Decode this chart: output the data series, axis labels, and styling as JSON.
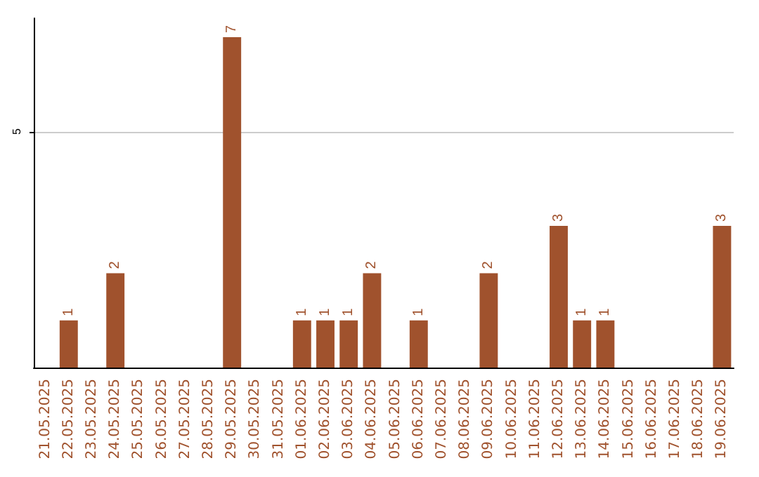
{
  "chart_data": {
    "type": "bar",
    "categories": [
      "21.05.2025",
      "22.05.2025",
      "23.05.2025",
      "24.05.2025",
      "25.05.2025",
      "26.05.2025",
      "27.05.2025",
      "28.05.2025",
      "29.05.2025",
      "30.05.2025",
      "31.05.2025",
      "01.06.2025",
      "02.06.2025",
      "03.06.2025",
      "04.06.2025",
      "05.06.2025",
      "06.06.2025",
      "07.06.2025",
      "08.06.2025",
      "09.06.2025",
      "10.06.2025",
      "11.06.2025",
      "12.06.2025",
      "13.06.2025",
      "14.06.2025",
      "15.06.2025",
      "16.06.2025",
      "17.06.2025",
      "18.06.2025",
      "19.06.2025"
    ],
    "values": [
      0,
      1,
      0,
      2,
      0,
      0,
      0,
      0,
      7,
      0,
      0,
      1,
      1,
      1,
      2,
      0,
      1,
      0,
      0,
      2,
      0,
      0,
      3,
      1,
      1,
      0,
      0,
      0,
      0,
      3
    ],
    "value_labels": [
      null,
      "1",
      null,
      "2",
      null,
      null,
      null,
      null,
      "7",
      null,
      null,
      "1",
      "1",
      "1",
      "2",
      null,
      "1",
      null,
      null,
      "2",
      null,
      null,
      "3",
      "1",
      "1",
      null,
      null,
      null,
      null,
      "3"
    ],
    "color": "#a0522d",
    "ylim": [
      0,
      7.4
    ],
    "yticks": [
      5
    ],
    "grid": "y"
  }
}
